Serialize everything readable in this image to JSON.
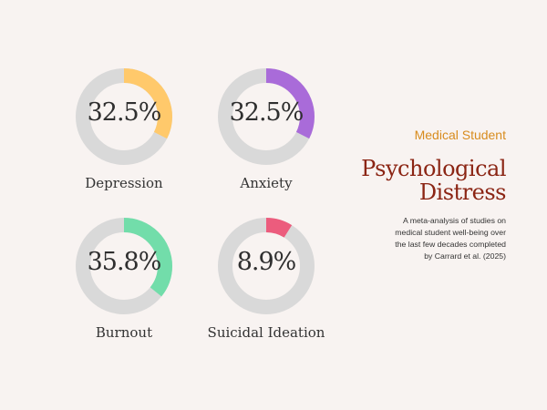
{
  "chart_data": {
    "type": "pie",
    "charts": [
      {
        "label": "Depression",
        "value": 32.5,
        "display": "32.5%",
        "color": "#ffc96b",
        "track": "#d9d9d9"
      },
      {
        "label": "Anxiety",
        "value": 32.5,
        "display": "32.5%",
        "color": "#a96bd9",
        "track": "#d9d9d9"
      },
      {
        "label": "Burnout",
        "value": 35.8,
        "display": "35.8%",
        "color": "#72ddaa",
        "track": "#d9d9d9"
      },
      {
        "label": "Suicidal Ideation",
        "value": 8.9,
        "display": "8.9%",
        "color": "#ec5c7d",
        "track": "#d9d9d9"
      }
    ]
  },
  "panel": {
    "subtitle": "Medical Student",
    "title_line1": "Psychological",
    "title_line2": "Distress",
    "description_line1": "A meta-analysis of studies on",
    "description_line2": "medical student well-being over",
    "description_line3": "the last few decades completed",
    "description_line4": "by Carrard et al. (2025)"
  },
  "colors": {
    "background": "#f8f3f1",
    "accent_orange": "#d88c1e",
    "accent_red": "#8b2514"
  }
}
